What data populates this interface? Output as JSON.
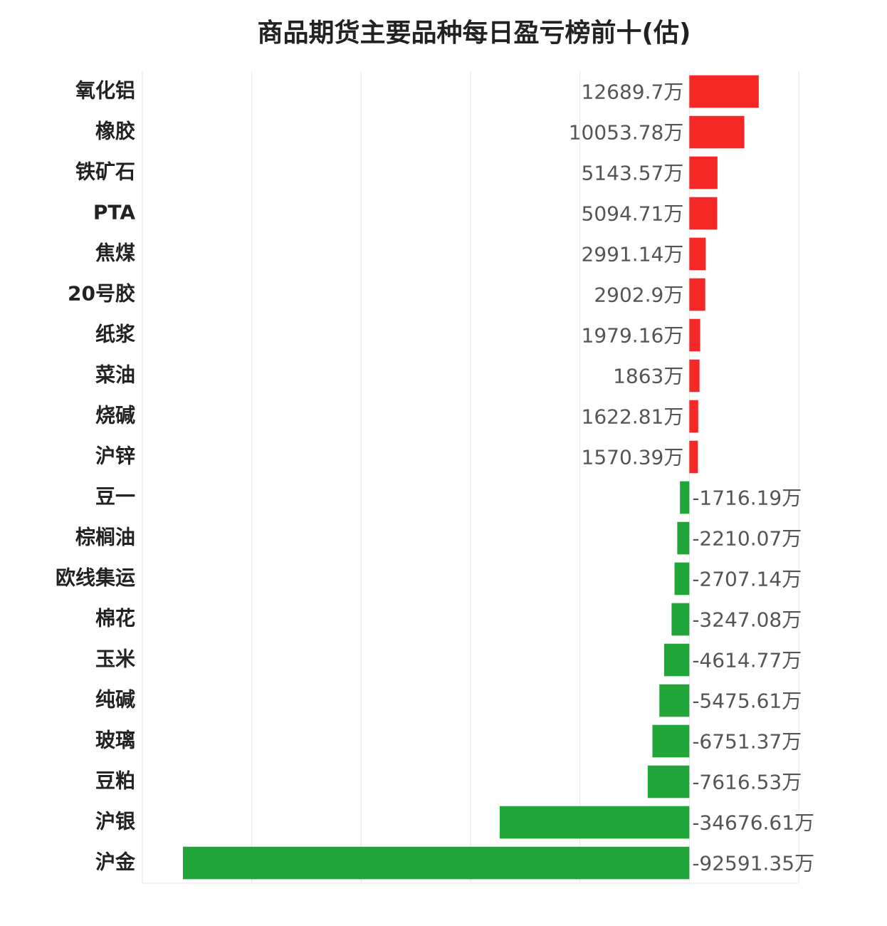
{
  "chart_data": {
    "type": "bar",
    "orientation": "horizontal",
    "title": "商品期货主要品种每日盈亏榜前十(估)",
    "categories": [
      "氧化铝",
      "橡胶",
      "铁矿石",
      "PTA",
      "焦煤",
      "20号胶",
      "纸浆",
      "菜油",
      "烧碱",
      "沪锌",
      "豆一",
      "棕榈油",
      "欧线集运",
      "棉花",
      "玉米",
      "纯碱",
      "玻璃",
      "豆粕",
      "沪银",
      "沪金"
    ],
    "values": [
      12689.7,
      10053.78,
      5143.57,
      5094.71,
      2991.14,
      2902.9,
      1979.16,
      1863,
      1622.81,
      1570.39,
      -1716.19,
      -2210.07,
      -2707.14,
      -3247.08,
      -4614.77,
      -5475.61,
      -6751.37,
      -7616.53,
      -34676.61,
      -92591.35
    ],
    "value_labels": [
      "12689.7万",
      "10053.78万",
      "5143.57万",
      "5094.71万",
      "2991.14万",
      "2902.9万",
      "1979.16万",
      "1863万",
      "1622.81万",
      "1570.39万",
      "-1716.19万",
      "-2210.07万",
      "-2707.14万",
      "-3247.08万",
      "-4614.77万",
      "-5475.61万",
      "-6751.37万",
      "-7616.53万",
      "-34676.61万",
      "-92591.35万"
    ],
    "positive_color": "#f52727",
    "negative_color": "#21a63a",
    "xlim": [
      -100000,
      20000
    ],
    "xticks": [
      -100000,
      -80000,
      -60000,
      -40000,
      -20000,
      0,
      20000
    ],
    "grid": true
  }
}
